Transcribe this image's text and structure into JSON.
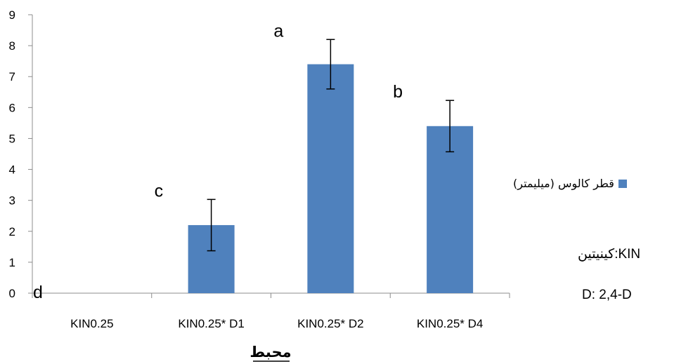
{
  "chart_data": {
    "type": "bar",
    "categories": [
      "KIN0.25",
      "KIN0.25* D1",
      "KIN0.25* D2",
      "KIN0.25* D4"
    ],
    "series": [
      {
        "name": "قطر كالوس (ميليمتر)",
        "values": [
          0,
          2.2,
          7.4,
          5.4
        ],
        "errors": [
          0,
          0.83,
          0.8,
          0.83
        ],
        "color": "#4f81bd"
      }
    ],
    "significance_letters": [
      "d",
      "c",
      "a",
      "b"
    ],
    "yticks": [
      "0",
      "1",
      "2",
      "3",
      "4",
      "5",
      "6",
      "7",
      "8",
      "9"
    ],
    "ylim": [
      0,
      9
    ],
    "xlabel": "محبط",
    "ylabel": "",
    "title": "",
    "grid": false,
    "legend_position": "right"
  },
  "notes": {
    "kin": "كينيتين:KIN",
    "d": "D: 2,4-D"
  }
}
